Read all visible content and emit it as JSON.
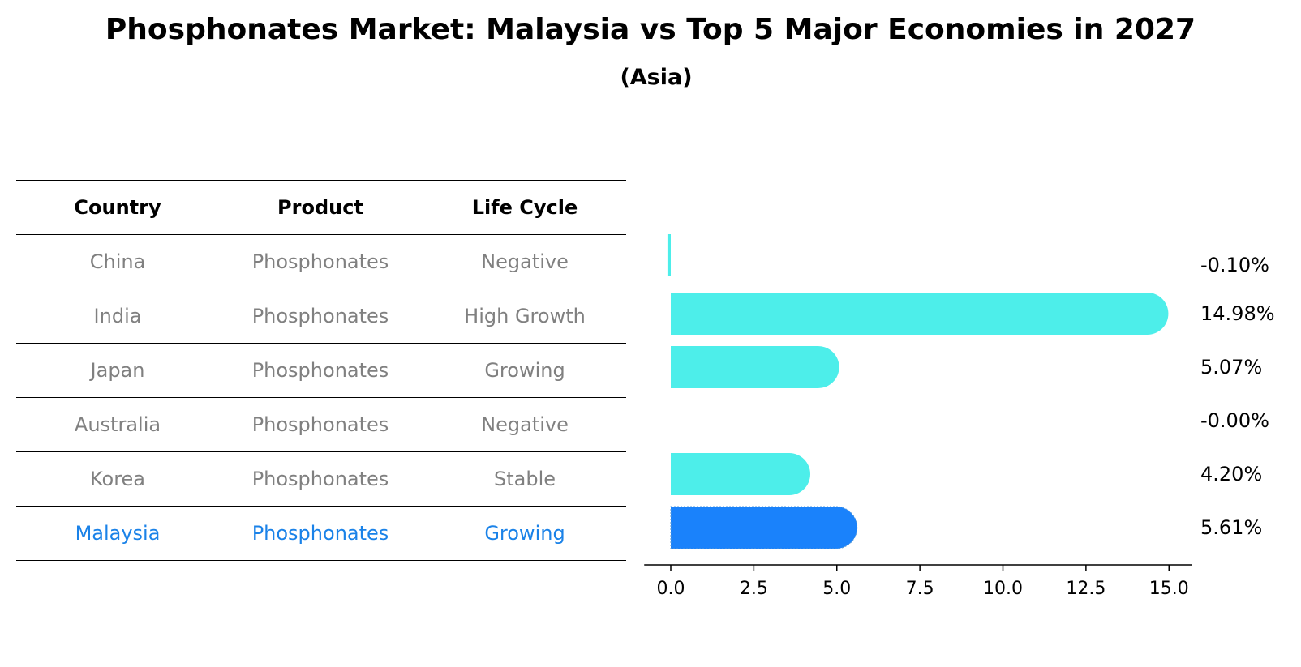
{
  "title": "Phosphonates Market: Malaysia vs Top 5 Major Economies in 2027",
  "subtitle": "(Asia)",
  "table": {
    "headers": [
      "Country",
      "Product",
      "Life Cycle"
    ],
    "rows": [
      {
        "country": "China",
        "product": "Phosphonates",
        "life_cycle": "Negative"
      },
      {
        "country": "India",
        "product": "Phosphonates",
        "life_cycle": "High Growth"
      },
      {
        "country": "Japan",
        "product": "Phosphonates",
        "life_cycle": "Growing"
      },
      {
        "country": "Australia",
        "product": "Phosphonates",
        "life_cycle": "Negative"
      },
      {
        "country": "Korea",
        "product": "Phosphonates",
        "life_cycle": "Stable"
      },
      {
        "country": "Malaysia",
        "product": "Phosphonates",
        "life_cycle": "Growing"
      }
    ],
    "highlight_row": "Malaysia",
    "highlight_color": "#1a82e8",
    "normal_text_color": "#808080"
  },
  "chart_data": {
    "type": "bar",
    "orientation": "horizontal",
    "categories": [
      "China",
      "India",
      "Japan",
      "Australia",
      "Korea",
      "Malaysia"
    ],
    "values": [
      -0.1,
      14.98,
      5.07,
      -0.0,
      4.2,
      5.61
    ],
    "value_labels": [
      "-0.10%",
      "14.98%",
      "5.07%",
      "-0.00%",
      "4.20%",
      "5.61%"
    ],
    "xlim": [
      -0.8,
      15.7
    ],
    "xticks": [
      0.0,
      2.5,
      5.0,
      7.5,
      10.0,
      12.5,
      15.0
    ],
    "xtick_labels": [
      "0.0",
      "2.5",
      "5.0",
      "7.5",
      "10.0",
      "12.5",
      "15.0"
    ],
    "bar_color": "#4deeea",
    "highlight_color": "#1a82fb",
    "highlight_category": "Malaysia",
    "grid": false
  }
}
